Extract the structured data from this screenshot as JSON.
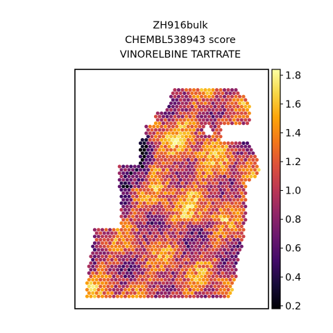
{
  "chart_data": {
    "type": "spatial_scatter",
    "title_lines": [
      "ZH916bulk",
      "CHEMBL538943 score",
      "VINORELBINE TARTRATE"
    ],
    "colorbar": {
      "colormap": "inferno",
      "vmin": 0.18,
      "vmax": 1.84,
      "ticks": [
        0.2,
        0.4,
        0.6,
        0.8,
        1.0,
        1.2,
        1.4,
        1.6,
        1.8
      ],
      "tick_labels": [
        "0.2",
        "0.4",
        "0.6",
        "0.8",
        "1.0",
        "1.2",
        "1.4",
        "1.6",
        "1.8"
      ]
    },
    "score_summary": {
      "typical": 1.2,
      "min": 0.2,
      "max": 1.8
    },
    "axes": {
      "xticks": [],
      "yticks": [],
      "grid": false,
      "legend": "none"
    }
  }
}
